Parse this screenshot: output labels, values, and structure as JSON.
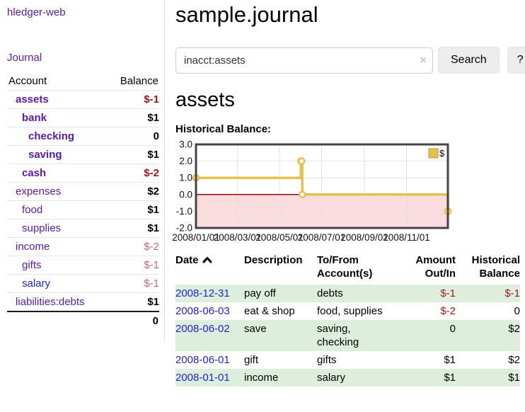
{
  "brand": {
    "label": "hledger-web"
  },
  "nav": {
    "journal": "Journal"
  },
  "sidebar": {
    "columns": {
      "account": "Account",
      "balance": "Balance"
    },
    "accounts": [
      {
        "name": "assets",
        "indent": 1,
        "balance": "$-1",
        "emph": true,
        "neg": "strong",
        "link": "purple"
      },
      {
        "name": "bank",
        "indent": 2,
        "balance": "$1",
        "emph": true,
        "neg": null,
        "link": "purple"
      },
      {
        "name": "checking",
        "indent": 3,
        "balance": "0",
        "emph": true,
        "neg": null,
        "link": "purple"
      },
      {
        "name": "saving",
        "indent": 3,
        "balance": "$1",
        "emph": true,
        "neg": null,
        "link": "purple"
      },
      {
        "name": "cash",
        "indent": 2,
        "balance": "$-2",
        "emph": true,
        "neg": "strong",
        "link": "purple"
      },
      {
        "name": "expenses",
        "indent": 1,
        "balance": "$2",
        "emph": false,
        "neg": null,
        "link": "purple"
      },
      {
        "name": "food",
        "indent": 2,
        "balance": "$1",
        "emph": false,
        "neg": null,
        "link": "purple"
      },
      {
        "name": "supplies",
        "indent": 2,
        "balance": "$1",
        "emph": false,
        "neg": null,
        "link": "purple"
      },
      {
        "name": "income",
        "indent": 1,
        "balance": "$-2",
        "emph": false,
        "neg": "soft",
        "link": "purple"
      },
      {
        "name": "gifts",
        "indent": 2,
        "balance": "$-1",
        "emph": false,
        "neg": "soft",
        "link": "purple"
      },
      {
        "name": "salary",
        "indent": 2,
        "balance": "$-1",
        "emph": false,
        "neg": "soft",
        "link": "blue"
      },
      {
        "name": "liabilities:debts",
        "indent": 1,
        "balance": "$1",
        "emph": false,
        "neg": null,
        "link": "purple"
      }
    ],
    "total": "0"
  },
  "page": {
    "title": "sample.journal"
  },
  "search": {
    "value": "inacct:assets",
    "clear_label": "×",
    "button": "Search",
    "help_button": "?"
  },
  "account_page": {
    "heading": "assets",
    "section_label": "Historical Balance:"
  },
  "chart_data": {
    "type": "line",
    "step": true,
    "title": "Historical Balance",
    "series": [
      {
        "name": "$",
        "color": "#e6c14a",
        "points": [
          [
            "2008-01-01",
            1
          ],
          [
            "2008-06-01",
            2
          ],
          [
            "2008-06-02",
            2
          ],
          [
            "2008-06-03",
            0
          ],
          [
            "2008-12-31",
            -1
          ]
        ]
      }
    ],
    "x_range": [
      "2008-01-01",
      "2008-12-31"
    ],
    "ylim": [
      -2,
      3
    ],
    "y_ticks": [
      3.0,
      2.0,
      1.0,
      0.0,
      -1.0,
      -2.0
    ],
    "x_tick_labels": [
      "2008/01/01",
      "2008/03/01",
      "2008/05/01",
      "2008/07/01",
      "2008/09/01",
      "2008/11/01"
    ],
    "legend": {
      "position": "top-right",
      "entries": [
        "$"
      ]
    },
    "grid": true,
    "colors": {
      "negative_region": "#fbdcdc",
      "zero_line": "#8e0b0b",
      "gridline": "#e2e2e2",
      "border": "#454545",
      "marker_fill": "#ffffff"
    }
  },
  "register": {
    "columns": {
      "date": "Date",
      "description": "Description",
      "accounts": "To/From Account(s)",
      "amount": "Amount Out/In",
      "balance": "Historical Balance"
    },
    "sort_icon": "chevron-up",
    "rows": [
      {
        "date": "2008-12-31",
        "description": "pay off",
        "accounts": "debts",
        "amount": "$-1",
        "balance": "$-1",
        "amount_neg": true,
        "balance_neg": true
      },
      {
        "date": "2008-06-03",
        "description": "eat & shop",
        "accounts": "food, supplies",
        "amount": "$-2",
        "balance": "0",
        "amount_neg": true,
        "balance_neg": false
      },
      {
        "date": "2008-06-02",
        "description": "save",
        "accounts": "saving, checking",
        "amount": "0",
        "balance": "$2",
        "amount_neg": false,
        "balance_neg": false
      },
      {
        "date": "2008-06-01",
        "description": "gift",
        "accounts": "gifts",
        "amount": "$1",
        "balance": "$2",
        "amount_neg": false,
        "balance_neg": false
      },
      {
        "date": "2008-01-01",
        "description": "income",
        "accounts": "salary",
        "amount": "$1",
        "balance": "$1",
        "amount_neg": false,
        "balance_neg": false
      }
    ]
  },
  "colors": {
    "link_purple": "#5a1aa8",
    "link_blue": "#2323cd",
    "negative_strong": "#a11616",
    "negative_soft": "#bd6d6d",
    "row_stripe_green": "#ddeedd",
    "chart_gold": "#e6c14a"
  }
}
